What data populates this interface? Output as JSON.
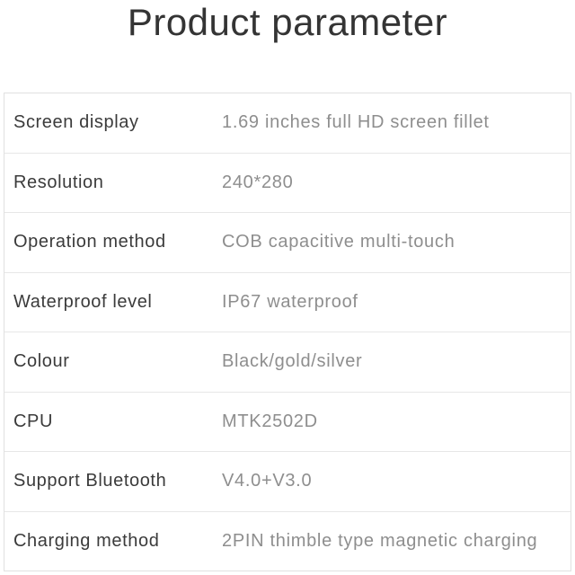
{
  "title": "Product parameter",
  "colors": {
    "background": "#ffffff",
    "title_text": "#343434",
    "label_text": "#3b3b3b",
    "value_text": "#8e8e8e",
    "border": "#e1e1e1",
    "divider": "#e7e7e7"
  },
  "table": {
    "rows": [
      {
        "label": "Screen display",
        "value": "1.69 inches full HD screen fillet"
      },
      {
        "label": "Resolution",
        "value": "240*280"
      },
      {
        "label": "Operation method",
        "value": "COB capacitive multi-touch"
      },
      {
        "label": "Waterproof level",
        "value": "IP67 waterproof"
      },
      {
        "label": "Colour",
        "value": "Black/gold/silver"
      },
      {
        "label": "CPU",
        "value": "MTK2502D"
      },
      {
        "label": "Support Bluetooth",
        "value": "V4.0+V3.0"
      },
      {
        "label": "Charging method",
        "value": "2PIN thimble type magnetic charging"
      }
    ]
  }
}
